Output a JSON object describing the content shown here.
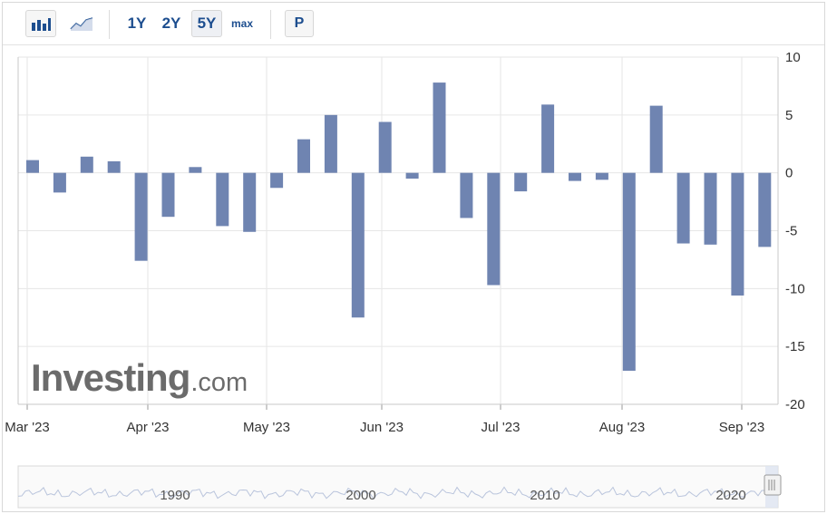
{
  "toolbar": {
    "bar_icon": "bar-chart-icon",
    "line_icon": "line-chart-icon",
    "ranges": [
      "1Y",
      "2Y",
      "5Y",
      "max"
    ],
    "active_range": "5Y",
    "p_label": "P"
  },
  "logo": {
    "brand": "Investing",
    "tld": ".com"
  },
  "chart_data": {
    "type": "bar",
    "bar_color": "#6f84b1",
    "x_labels": [
      "Mar '23",
      "Apr '23",
      "May '23",
      "Jun '23",
      "Jul '23",
      "Aug '23",
      "Sep '23"
    ],
    "y_ticks": [
      "10",
      "5",
      "0",
      "-5",
      "-10",
      "-15",
      "-20"
    ],
    "ylim": [
      -20,
      10
    ],
    "values": [
      1.1,
      -1.7,
      1.4,
      1.0,
      -7.6,
      -3.8,
      0.5,
      -4.6,
      -5.1,
      -1.3,
      2.9,
      5.0,
      -12.5,
      4.4,
      -0.5,
      7.8,
      -3.9,
      -9.7,
      -1.6,
      5.9,
      -0.7,
      -0.6,
      -17.1,
      5.8,
      -6.1,
      -6.2,
      -10.6,
      -6.4
    ],
    "grid": true,
    "navigator_labels": [
      "1990",
      "2000",
      "2010",
      "2020"
    ]
  }
}
